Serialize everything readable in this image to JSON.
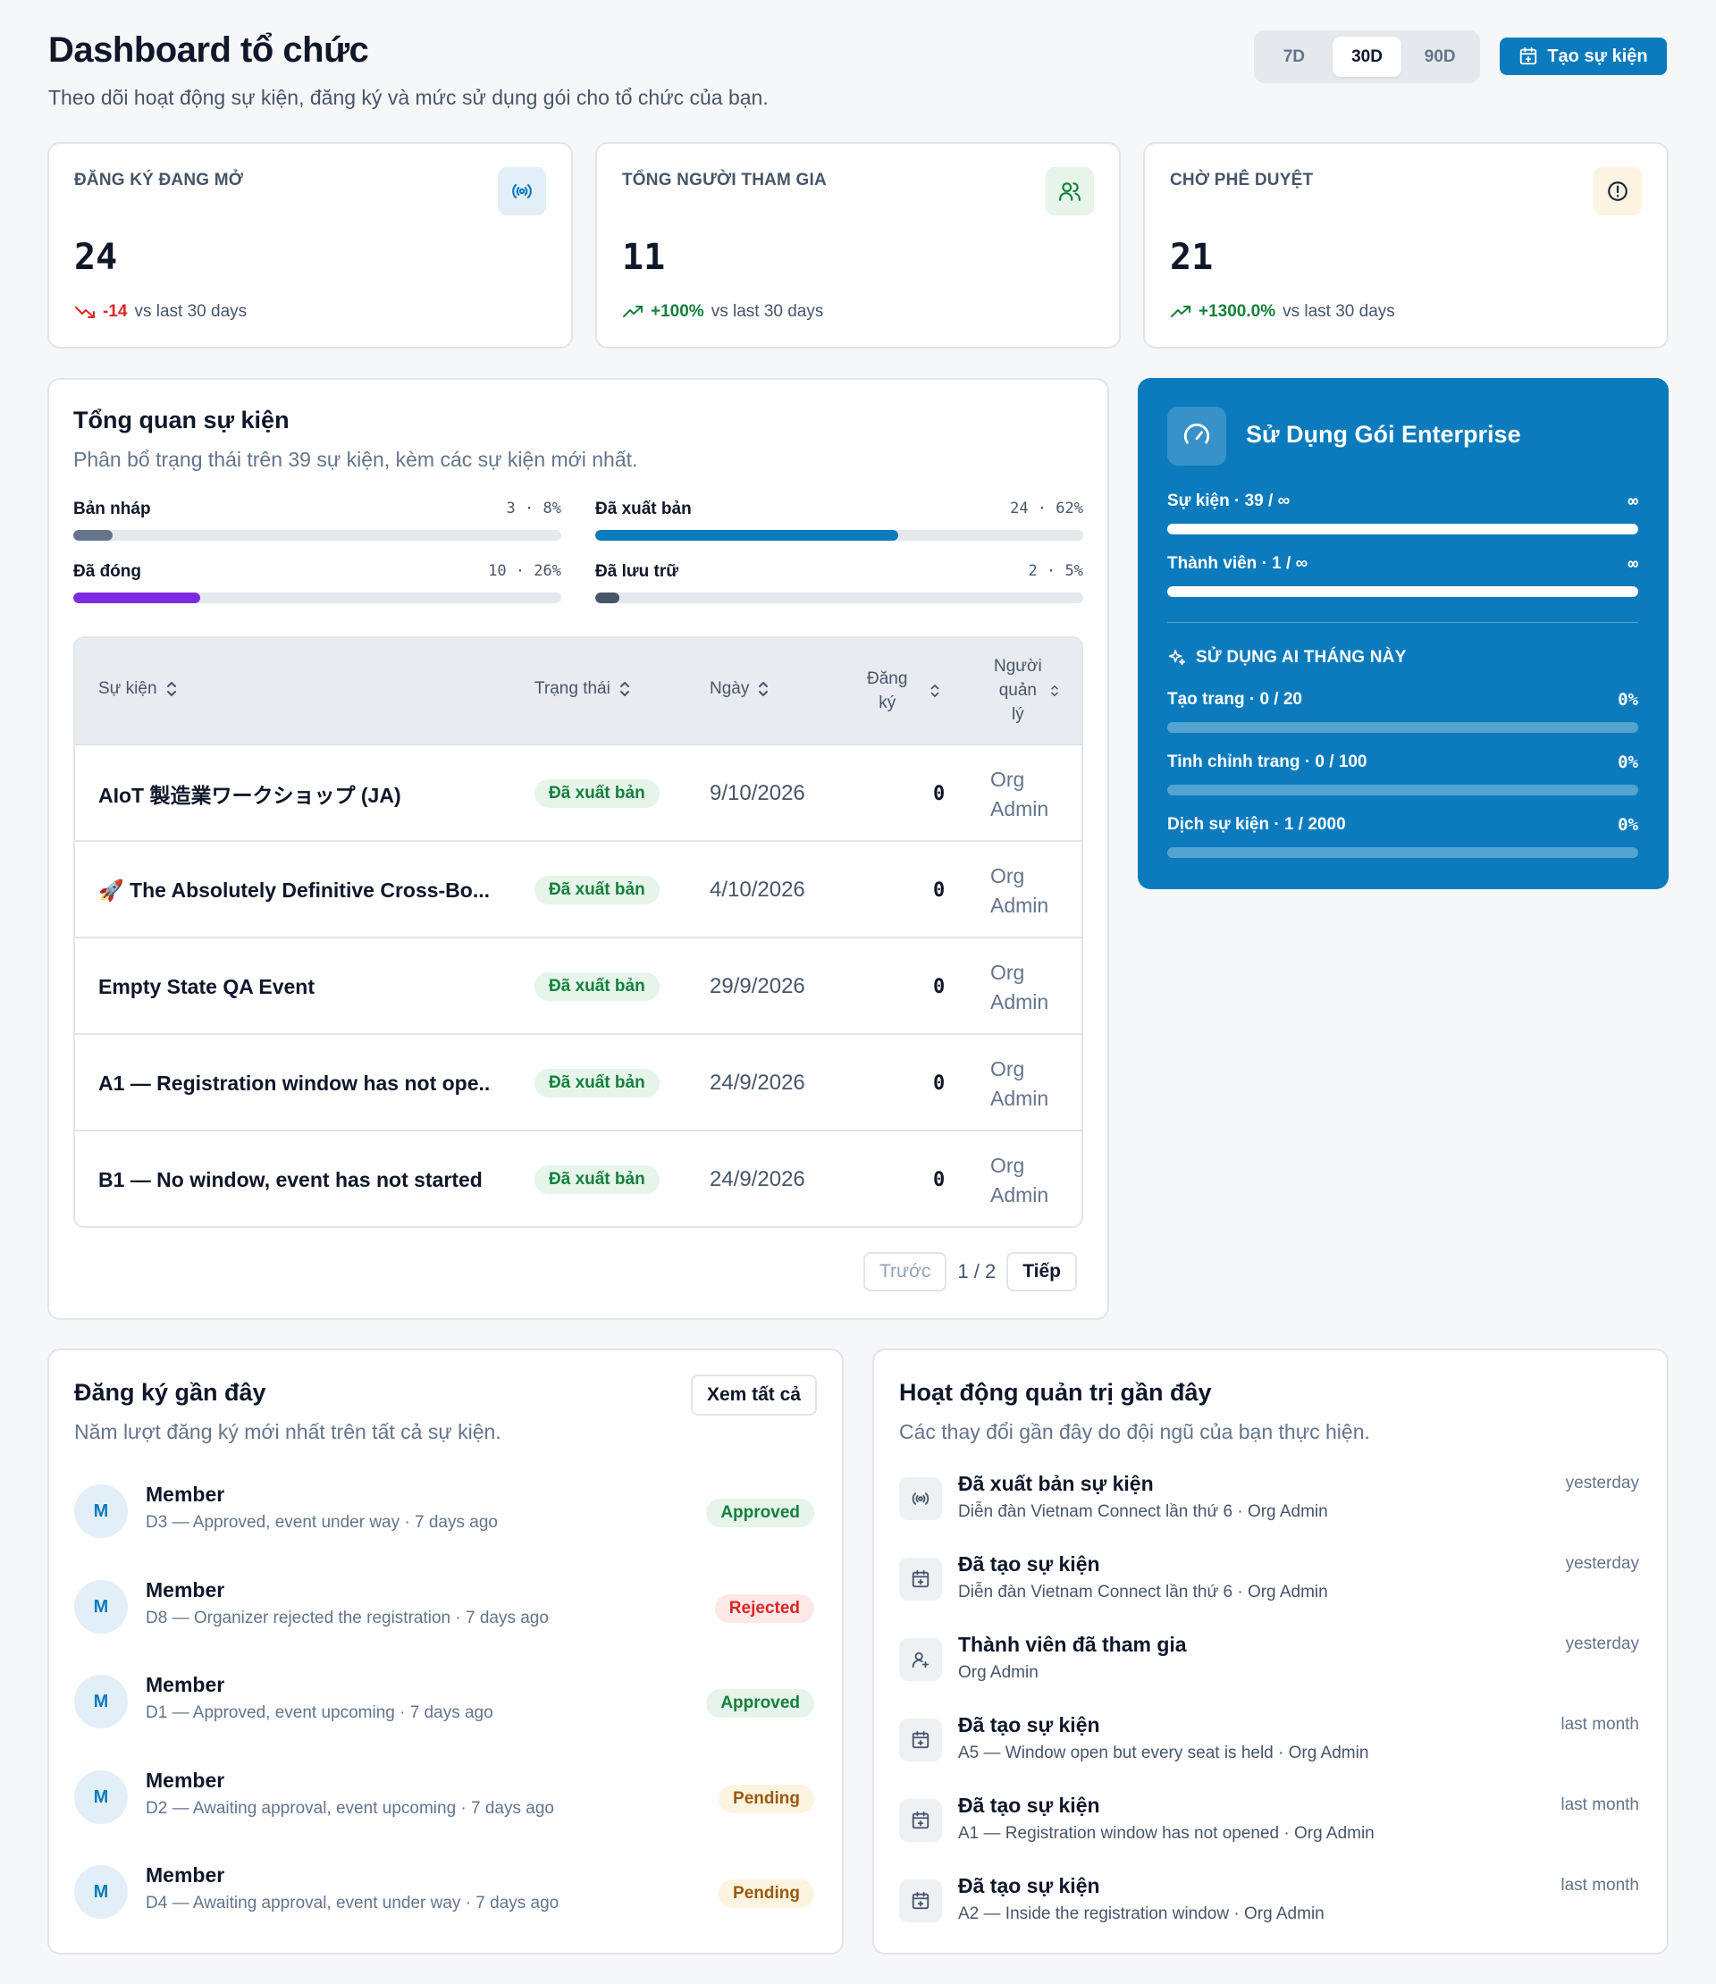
{
  "header": {
    "title": "Dashboard tổ chức",
    "subtitle": "Theo dõi hoạt động sự kiện, đăng ký và mức sử dụng gói cho tổ chức của bạn.",
    "ranges": [
      "7D",
      "30D",
      "90D"
    ],
    "active_range": "30D",
    "create_label": "Tạo sự kiện"
  },
  "stats": [
    {
      "label": "ĐĂNG KÝ ĐANG MỞ",
      "value": "24",
      "delta": "-14",
      "delta_dir": "down",
      "compare": "vs last 30 days",
      "icon": "broadcast-icon"
    },
    {
      "label": "TỔNG NGƯỜI THAM GIA",
      "value": "11",
      "delta": "+100%",
      "delta_dir": "up",
      "compare": "vs last 30 days",
      "icon": "users-icon"
    },
    {
      "label": "CHỜ PHÊ DUYỆT",
      "value": "21",
      "delta": "+1300.0%",
      "delta_dir": "up",
      "compare": "vs last 30 days",
      "icon": "alert-circle-icon"
    }
  ],
  "overview": {
    "title": "Tổng quan sự kiện",
    "subtitle": "Phân bổ trạng thái trên 39 sự kiện, kèm các sự kiện mới nhất.",
    "distribution": [
      {
        "name": "Bản nháp",
        "count": "3",
        "percent": "8%",
        "fraction": 0.08,
        "color": "#64748b"
      },
      {
        "name": "Đã xuất bản",
        "count": "24",
        "percent": "62%",
        "fraction": 0.62,
        "color": "#0b7bbd"
      },
      {
        "name": "Đã đóng",
        "count": "10",
        "percent": "26%",
        "fraction": 0.26,
        "color": "#7c2ce0"
      },
      {
        "name": "Đã lưu trữ",
        "count": "2",
        "percent": "5%",
        "fraction": 0.05,
        "color": "#475569"
      }
    ],
    "columns": {
      "event": "Sự kiện",
      "status": "Trạng thái",
      "date": "Ngày",
      "registrations_1": "Đăng",
      "registrations_2": "ký",
      "manager_1": "Người",
      "manager_2": "quản",
      "manager_3": "lý"
    },
    "rows": [
      {
        "name": "AIoT 製造業ワークショップ (JA)",
        "status": "Đã xuất bản",
        "date": "9/10/2026",
        "registrations": "0",
        "manager_1": "Org",
        "manager_2": "Admin"
      },
      {
        "name": "🚀 The Absolutely Definitive Cross-Bo...",
        "status": "Đã xuất bản",
        "date": "4/10/2026",
        "registrations": "0",
        "manager_1": "Org",
        "manager_2": "Admin"
      },
      {
        "name": "Empty State QA Event",
        "status": "Đã xuất bản",
        "date": "29/9/2026",
        "registrations": "0",
        "manager_1": "Org",
        "manager_2": "Admin"
      },
      {
        "name": "A1 — Registration window has not ope...",
        "status": "Đã xuất bản",
        "date": "24/9/2026",
        "registrations": "0",
        "manager_1": "Org",
        "manager_2": "Admin"
      },
      {
        "name": "B1 — No window, event has not started",
        "status": "Đã xuất bản",
        "date": "24/9/2026",
        "registrations": "0",
        "manager_1": "Org",
        "manager_2": "Admin"
      }
    ],
    "pager": {
      "prev": "Trước",
      "page": "1 / 2",
      "next": "Tiếp"
    }
  },
  "enterprise": {
    "title": "Sử Dụng Gói Enterprise",
    "usage": [
      {
        "label": "Sự kiện · 39 / ∞",
        "right": "∞",
        "fraction": 1.0
      },
      {
        "label": "Thành viên · 1 / ∞",
        "right": "∞",
        "fraction": 1.0
      }
    ],
    "ai_title": "SỬ DỤNG AI THÁNG NÀY",
    "ai_usage": [
      {
        "label": "Tạo trang · 0 / 20",
        "right": "0%",
        "fraction": 0
      },
      {
        "label": "Tinh chỉnh trang · 0 / 100",
        "right": "0%",
        "fraction": 0
      },
      {
        "label": "Dịch sự kiện · 1 / 2000",
        "right": "0%",
        "fraction": 0
      }
    ]
  },
  "registrations": {
    "title": "Đăng ký gần đây",
    "subtitle": "Năm lượt đăng ký mới nhất trên tất cả sự kiện.",
    "view_all": "Xem tất cả",
    "items": [
      {
        "initial": "M",
        "name": "Member",
        "desc": "D3 — Approved, event under way · 7 days ago",
        "status": "Approved",
        "kind": "approved"
      },
      {
        "initial": "M",
        "name": "Member",
        "desc": "D8 — Organizer rejected the registration · 7 days ago",
        "status": "Rejected",
        "kind": "rejected"
      },
      {
        "initial": "M",
        "name": "Member",
        "desc": "D1 — Approved, event upcoming · 7 days ago",
        "status": "Approved",
        "kind": "approved"
      },
      {
        "initial": "M",
        "name": "Member",
        "desc": "D2 — Awaiting approval, event upcoming · 7 days ago",
        "status": "Pending",
        "kind": "pending"
      },
      {
        "initial": "M",
        "name": "Member",
        "desc": "D4 — Awaiting approval, event under way · 7 days ago",
        "status": "Pending",
        "kind": "pending"
      }
    ]
  },
  "activity": {
    "title": "Hoạt động quản trị gần đây",
    "subtitle": "Các thay đổi gần đây do đội ngũ của bạn thực hiện.",
    "items": [
      {
        "icon": "broadcast-icon",
        "title": "Đã xuất bản sự kiện",
        "desc": "Diễn đàn Vietnam Connect lần thứ 6 · Org Admin",
        "time": "yesterday"
      },
      {
        "icon": "calendar-plus-icon",
        "title": "Đã tạo sự kiện",
        "desc": "Diễn đàn Vietnam Connect lần thứ 6 · Org Admin",
        "time": "yesterday"
      },
      {
        "icon": "user-plus-icon",
        "title": "Thành viên đã tham gia",
        "desc": "Org Admin",
        "time": "yesterday"
      },
      {
        "icon": "calendar-plus-icon",
        "title": "Đã tạo sự kiện",
        "desc": "A5 — Window open but every seat is held · Org Admin",
        "time": "last month"
      },
      {
        "icon": "calendar-plus-icon",
        "title": "Đã tạo sự kiện",
        "desc": "A1 — Registration window has not opened · Org Admin",
        "time": "last month"
      },
      {
        "icon": "calendar-plus-icon",
        "title": "Đã tạo sự kiện",
        "desc": "A2 — Inside the registration window · Org Admin",
        "time": "last month"
      }
    ]
  },
  "colors": {
    "accent": "#0b7bbd",
    "success": "#15803d",
    "danger": "#dc2626",
    "warning": "#9a5a0a"
  }
}
